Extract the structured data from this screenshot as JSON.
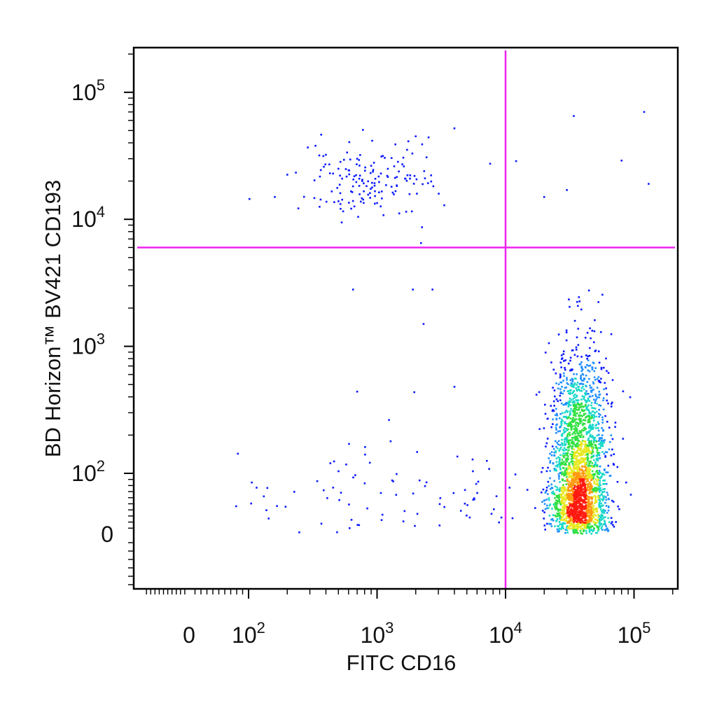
{
  "chart_data": {
    "type": "scatter",
    "subtype": "flow-cytometry-density-dot-plot",
    "xlabel": "FITC CD16",
    "ylabel": "BD Horizon™ BV421 CD193",
    "x_scale": "biexponential",
    "y_scale": "biexponential",
    "xlim": [
      -120,
      230000
    ],
    "ylim": [
      -60,
      230000
    ],
    "x_ticks": [
      {
        "value": 0,
        "base": "0",
        "exp": ""
      },
      {
        "value": 100,
        "base": "10",
        "exp": "2"
      },
      {
        "value": 1000,
        "base": "10",
        "exp": "3"
      },
      {
        "value": 10000,
        "base": "10",
        "exp": "4"
      },
      {
        "value": 100000,
        "base": "10",
        "exp": "5"
      }
    ],
    "y_ticks": [
      {
        "value": 0,
        "base": "0",
        "exp": ""
      },
      {
        "value": 100,
        "base": "10",
        "exp": "2"
      },
      {
        "value": 1000,
        "base": "10",
        "exp": "3"
      },
      {
        "value": 10000,
        "base": "10",
        "exp": "4"
      },
      {
        "value": 100000,
        "base": "10",
        "exp": "5"
      }
    ],
    "grid": false,
    "legend": "none",
    "quadrant_gate": {
      "x": 10000,
      "y": 6000,
      "color": "#ee22ee"
    },
    "density_colormap": [
      "#0a1aff",
      "#1f8fff",
      "#18d8c8",
      "#30e040",
      "#e8e820",
      "#ff9a10",
      "#ff1a10"
    ],
    "populations": [
      {
        "description": "CD16+ CD193- main cluster",
        "cx": 38000,
        "cy": 110,
        "n": 2600,
        "sx_decades": 0.11,
        "sy_decades": 0.45
      },
      {
        "description": "CD16- CD193+ cluster",
        "cx": 900,
        "cy": 20000,
        "n": 160,
        "sx_decades": 0.3,
        "sy_decades": 0.14
      },
      {
        "description": "CD16- CD193- scattered events",
        "cx": 1500,
        "cy": 60,
        "n": 90,
        "sx_decades": 0.6,
        "sy_decades": 0.3
      }
    ],
    "outliers": [
      [
        500,
        25000
      ],
      [
        700,
        30000
      ],
      [
        1200,
        22000
      ],
      [
        2000,
        45000
      ],
      [
        4000,
        52000
      ],
      [
        34000,
        65000
      ],
      [
        120000,
        70000
      ],
      [
        80000,
        29000
      ],
      [
        130000,
        19000
      ],
      [
        2200,
        6500
      ],
      [
        650,
        2800
      ],
      [
        1900,
        2800
      ],
      [
        2700,
        2800
      ],
      [
        2300,
        1500
      ],
      [
        700,
        440
      ],
      [
        4000,
        480
      ],
      [
        160,
        15000
      ],
      [
        20000,
        15000
      ],
      [
        30000,
        17000
      ]
    ]
  }
}
